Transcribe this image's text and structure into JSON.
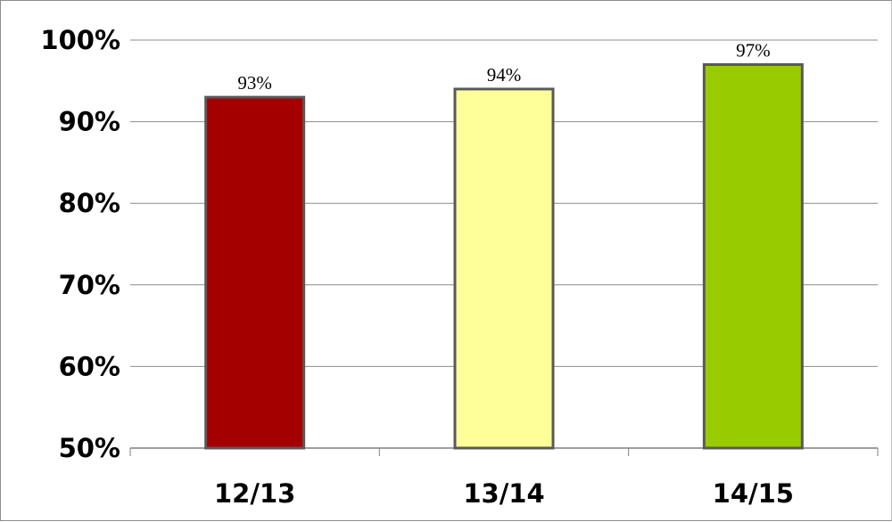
{
  "chart_data": {
    "type": "bar",
    "categories": [
      "12/13",
      "13/14",
      "14/15"
    ],
    "values": [
      93,
      94,
      97
    ],
    "data_labels": [
      "93%",
      "94%",
      "97%"
    ],
    "colors": [
      "#a50000",
      "#ffff99",
      "#99cc00"
    ],
    "bar_border_color": "#595959",
    "gridline_color": "#8c8c8c",
    "ylim": [
      50,
      100
    ],
    "yticks": [
      50,
      60,
      70,
      80,
      90,
      100
    ],
    "ytick_labels": [
      "50%",
      "60%",
      "70%",
      "80%",
      "90%",
      "100%"
    ],
    "grid": true,
    "legend": "none",
    "title": "",
    "xlabel": "",
    "ylabel": ""
  }
}
